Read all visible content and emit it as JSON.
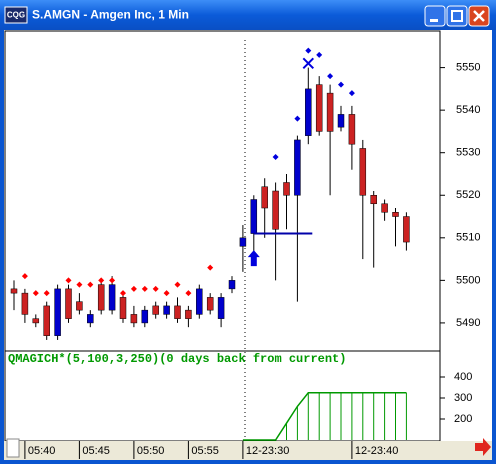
{
  "window": {
    "title": "S.AMGN - Amgen Inc, 1 Min",
    "icon": "CQG"
  },
  "chart_data": [
    {
      "type": "candlestick",
      "ylim": [
        5483.4,
        5558.6
      ],
      "yticks": [
        5490,
        5500,
        5510,
        5520,
        5530,
        5540,
        5550
      ],
      "categories": [
        null,
        "05:40",
        null,
        null,
        null,
        null,
        "05:45",
        null,
        null,
        null,
        null,
        "05:50",
        null,
        null,
        null,
        null,
        "05:55",
        null,
        null,
        null,
        null,
        "12-23:30",
        null,
        null,
        null,
        null,
        null,
        null,
        null,
        null,
        null,
        "12-23:40",
        null,
        null,
        null,
        null,
        null
      ],
      "up_color": "#0000cc",
      "down_color": "#cc2222",
      "open": [
        5498,
        5497,
        5491,
        5494,
        5487,
        5498,
        5495,
        5490,
        5499,
        5493,
        5496,
        5492,
        5490,
        5494,
        5492,
        5494,
        5493,
        5492,
        5496,
        5491,
        5498,
        5508,
        5511,
        5522,
        5521,
        5523,
        5520,
        5534,
        5546,
        5544,
        5536,
        5539,
        5531,
        5520,
        5518,
        5516,
        5515
      ],
      "high": [
        5500,
        5498,
        5492,
        5495,
        5499,
        5499,
        5497,
        5493,
        5500,
        5501,
        5497,
        5494,
        5494,
        5495,
        5495,
        5496,
        5494,
        5499,
        5497,
        5497,
        5501,
        5513,
        5520,
        5524,
        5523,
        5525,
        5534,
        5550,
        5548,
        5546,
        5541,
        5541,
        5533,
        5521,
        5519,
        5517,
        5516
      ],
      "low": [
        5493,
        5490,
        5489,
        5486,
        5486,
        5490,
        5492,
        5489,
        5492,
        5492,
        5490,
        5489,
        5489,
        5491,
        5491,
        5490,
        5489,
        5491,
        5492,
        5489,
        5497,
        5502,
        5505,
        5510,
        5500,
        5512,
        5495,
        5532,
        5534,
        5520,
        5535,
        5526,
        5505,
        5503,
        5514,
        5508,
        5507
      ],
      "close": [
        5497,
        5492,
        5490,
        5487,
        5498,
        5491,
        5493,
        5492,
        5493,
        5499,
        5491,
        5490,
        5493,
        5492,
        5494,
        5491,
        5491,
        5498,
        5493,
        5496,
        5500,
        5510,
        5519,
        5517,
        5512,
        5520,
        5533,
        5545,
        5535,
        5535,
        5539,
        5532,
        5520,
        5518,
        5516,
        5515,
        5509
      ],
      "markers": [
        {
          "color": "#ff0000",
          "values": [
            null,
            5501,
            5497,
            5497,
            null,
            5500,
            5499,
            5499,
            5500,
            5500,
            5497,
            5498,
            5498,
            5498,
            5497,
            5499,
            5497,
            null,
            5503,
            null,
            null,
            null,
            null,
            null,
            null,
            null,
            null,
            null,
            null,
            null,
            null,
            null,
            null,
            null,
            null,
            null,
            null
          ]
        },
        {
          "color": "#0000dd",
          "values": [
            null,
            null,
            null,
            null,
            null,
            null,
            null,
            null,
            null,
            null,
            null,
            null,
            null,
            null,
            null,
            null,
            null,
            null,
            null,
            null,
            null,
            null,
            null,
            null,
            5529,
            null,
            5538,
            5554,
            5553,
            5548,
            5546,
            5544,
            null,
            null,
            null,
            null,
            null
          ]
        }
      ],
      "cross": {
        "index": 27,
        "value": 5551,
        "color": "#0000dd"
      },
      "arrow": {
        "index": 22,
        "value": 5505,
        "color": "#0000dd"
      },
      "level": {
        "from": 22,
        "to": 27,
        "value": 5511,
        "color": "#0000aa"
      }
    },
    {
      "type": "step",
      "title": "QMAGICH*(5,100,3,250)(0 days back from current)",
      "color": "#009900",
      "ylim": [
        100,
        519
      ],
      "yticks": [
        200,
        300,
        400
      ],
      "values": [
        null,
        null,
        null,
        null,
        null,
        null,
        null,
        null,
        null,
        null,
        null,
        null,
        null,
        null,
        null,
        null,
        null,
        null,
        null,
        null,
        null,
        100,
        100,
        100,
        100,
        180,
        260,
        325,
        325,
        325,
        325,
        325,
        325,
        325,
        325,
        325,
        325
      ]
    }
  ]
}
